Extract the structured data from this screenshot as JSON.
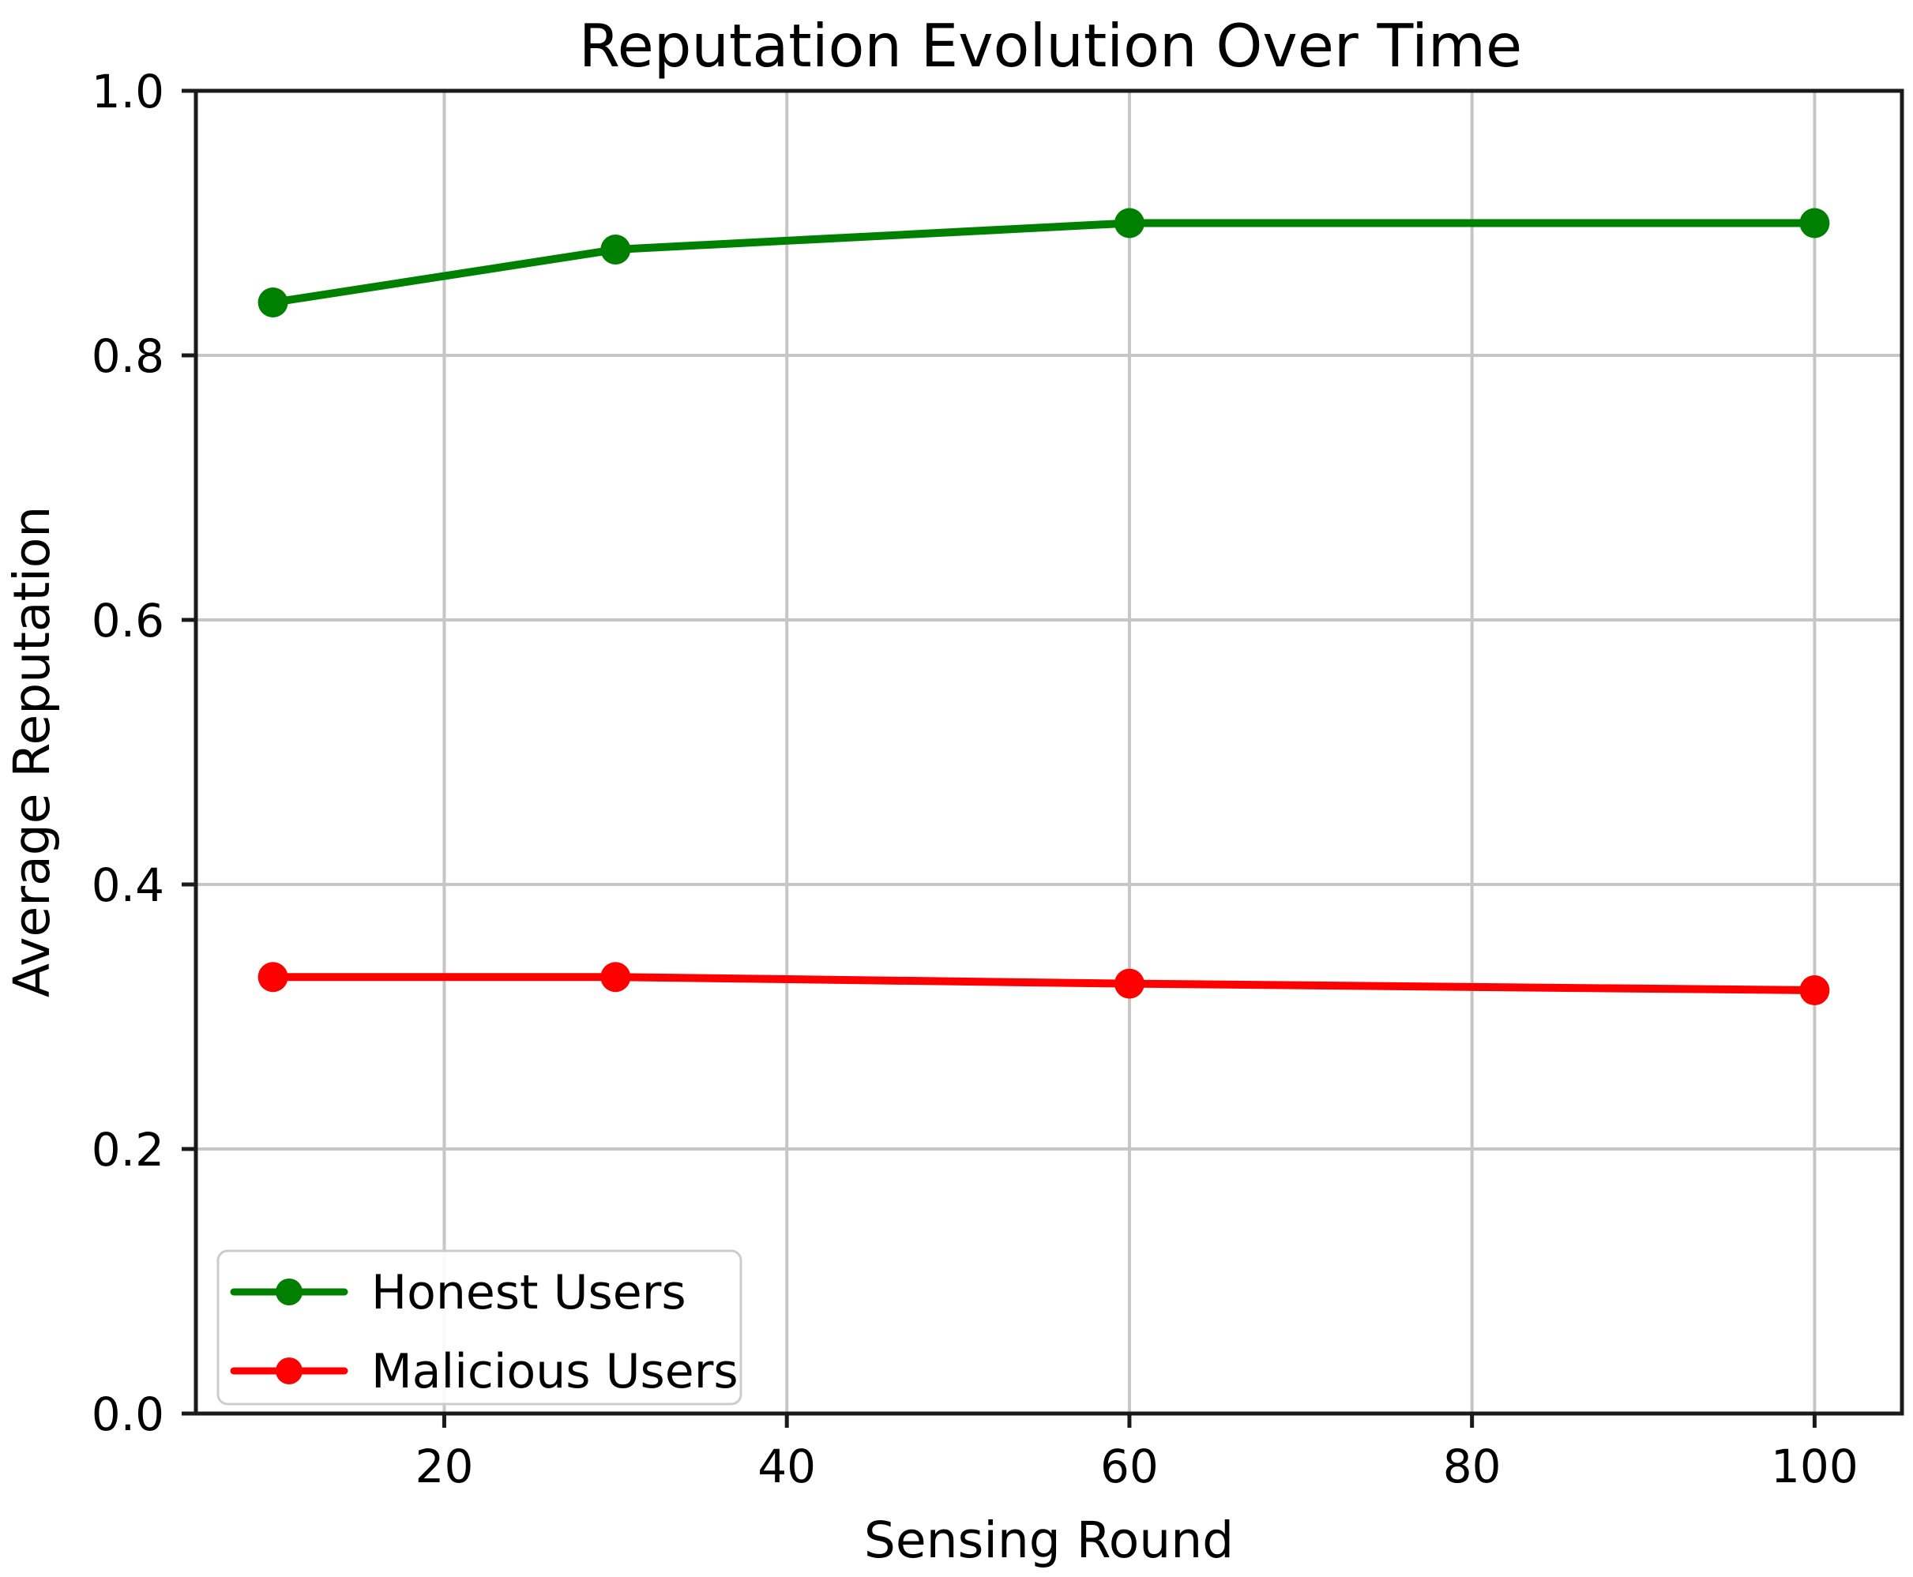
{
  "chart_data": {
    "type": "line",
    "title": "Reputation Evolution Over Time",
    "xlabel": "Sensing Round",
    "ylabel": "Average Reputation",
    "x": [
      10,
      30,
      60,
      100
    ],
    "series": [
      {
        "name": "Honest Users",
        "color": "#008000",
        "values": [
          0.84,
          0.88,
          0.9,
          0.9
        ]
      },
      {
        "name": "Malicious Users",
        "color": "#ff0000",
        "values": [
          0.33,
          0.33,
          0.325,
          0.32
        ]
      }
    ],
    "xlim": [
      5.5,
      105.1
    ],
    "ylim": [
      0.0,
      1.0
    ],
    "xticks": [
      20,
      40,
      60,
      80,
      100
    ],
    "xtick_labels": [
      "20",
      "40",
      "60",
      "80",
      "100"
    ],
    "yticks": [
      0.0,
      0.2,
      0.4,
      0.6,
      0.8,
      1.0
    ],
    "ytick_labels": [
      "0.0",
      "0.2",
      "0.4",
      "0.6",
      "0.8",
      "1.0"
    ],
    "grid": true,
    "legend_position": "lower left",
    "colors": {
      "grid": "#c6c6c6",
      "spine": "#1a1a1a",
      "text": "#000000",
      "legend_border": "#cccccc",
      "legend_fill": "#ffffff",
      "background": "#ffffff"
    }
  }
}
